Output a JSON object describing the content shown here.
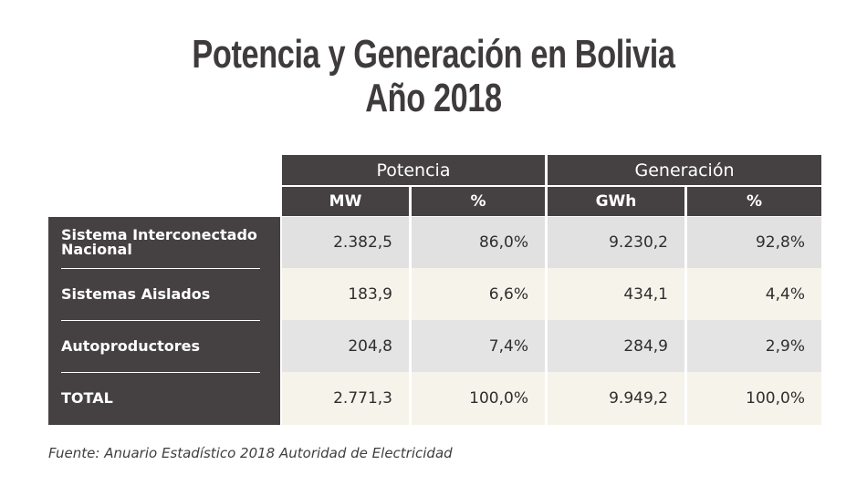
{
  "header": {
    "title": [
      "Potencia y Generación en Bolivia",
      "Año 2018"
    ]
  },
  "table": {
    "groups": [
      "Potencia",
      "Generación"
    ],
    "columns": [
      "MW",
      "%",
      "GWh",
      "%"
    ],
    "rows": [
      {
        "label": "Sistema Interconectado Nacional",
        "cells": [
          "2.382,5",
          "86,0%",
          "9.230,2",
          "92,8%"
        ]
      },
      {
        "label": "Sistemas Aislados",
        "cells": [
          "183,9",
          "6,6%",
          "434,1",
          "4,4%"
        ]
      },
      {
        "label": "Autoproductores",
        "cells": [
          "204,8",
          "7,4%",
          "284,9",
          "2,9%"
        ]
      },
      {
        "label": "TOTAL",
        "cells": [
          "2.771,3",
          "100,0%",
          "9.949,2",
          "100,0%"
        ]
      }
    ]
  },
  "source": "Fuente: Anuario Estadístico 2018 Autoridad de Electricidad"
}
